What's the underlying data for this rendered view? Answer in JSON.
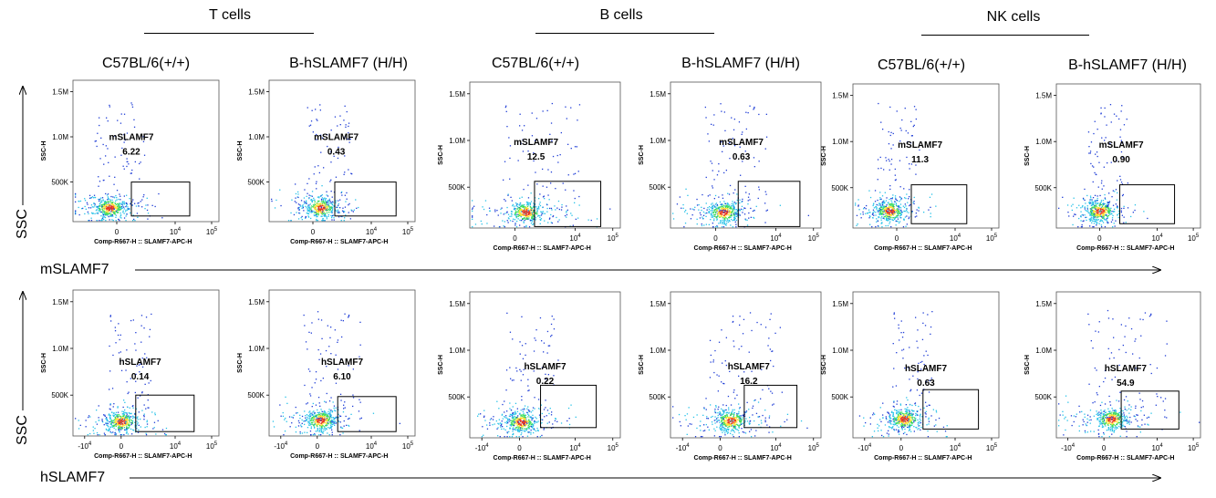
{
  "groups": [
    {
      "title": "T cells"
    },
    {
      "title": "B cells"
    },
    {
      "title": "NK cells"
    }
  ],
  "strains": [
    "C57BL/6(+/+)",
    "B-hSLAMF7 (H/H)",
    "C57BL/6(+/+)",
    "B-hSLAMF7 (H/H)",
    "C57BL/6(+/+)",
    "B-hSLAMF7 (H/H)"
  ],
  "row_labels": {
    "ssc": "SSC",
    "top_marker": "mSLAMF7",
    "bottom_marker": "hSLAMF7"
  },
  "colors": {
    "density_low": "#1f3dd6",
    "density_mid": "#27c2e8",
    "density_mid2": "#3bdc5a",
    "density_high": "#ffe033",
    "density_peak": "#e8361e"
  },
  "chart_data": {
    "type": "scatter",
    "subtype": "flow-cytometry-density",
    "xlabel": "Comp-R667-H :: SLAMF7-APC-H",
    "ylabel": "SSC-H",
    "y_ticks": [
      "500K",
      "1.0M",
      "1.5M"
    ],
    "x_ticks_top": [
      "0",
      "10^4",
      "10^5"
    ],
    "x_ticks_bottom": [
      "-10^4",
      "0",
      "10^4",
      "10^5"
    ],
    "panels": [
      {
        "row": "mSLAMF7",
        "cell_type": "T cells",
        "strain": "C57BL/6(+/+)",
        "gate": "mSLAMF7",
        "percent": "6.22"
      },
      {
        "row": "mSLAMF7",
        "cell_type": "T cells",
        "strain": "B-hSLAMF7 (H/H)",
        "gate": "mSLAMF7",
        "percent": "0.43"
      },
      {
        "row": "mSLAMF7",
        "cell_type": "B cells",
        "strain": "C57BL/6(+/+)",
        "gate": "mSLAMF7",
        "percent": "12.5"
      },
      {
        "row": "mSLAMF7",
        "cell_type": "B cells",
        "strain": "B-hSLAMF7 (H/H)",
        "gate": "mSLAMF7",
        "percent": "0.63"
      },
      {
        "row": "mSLAMF7",
        "cell_type": "NK cells",
        "strain": "C57BL/6(+/+)",
        "gate": "mSLAMF7",
        "percent": "11.3"
      },
      {
        "row": "mSLAMF7",
        "cell_type": "NK cells",
        "strain": "B-hSLAMF7 (H/H)",
        "gate": "mSLAMF7",
        "percent": "0.90"
      },
      {
        "row": "hSLAMF7",
        "cell_type": "T cells",
        "strain": "C57BL/6(+/+)",
        "gate": "hSLAMF7",
        "percent": "0.14"
      },
      {
        "row": "hSLAMF7",
        "cell_type": "T cells",
        "strain": "B-hSLAMF7 (H/H)",
        "gate": "hSLAMF7",
        "percent": "6.10"
      },
      {
        "row": "hSLAMF7",
        "cell_type": "B cells",
        "strain": "C57BL/6(+/+)",
        "gate": "hSLAMF7",
        "percent": "0.22"
      },
      {
        "row": "hSLAMF7",
        "cell_type": "B cells",
        "strain": "B-hSLAMF7 (H/H)",
        "gate": "hSLAMF7",
        "percent": "16.2"
      },
      {
        "row": "hSLAMF7",
        "cell_type": "NK cells",
        "strain": "C57BL/6(+/+)",
        "gate": "hSLAMF7",
        "percent": "0.63"
      },
      {
        "row": "hSLAMF7",
        "cell_type": "NK cells",
        "strain": "B-hSLAMF7 (H/H)",
        "gate": "hSLAMF7",
        "percent": "54.9"
      }
    ]
  }
}
